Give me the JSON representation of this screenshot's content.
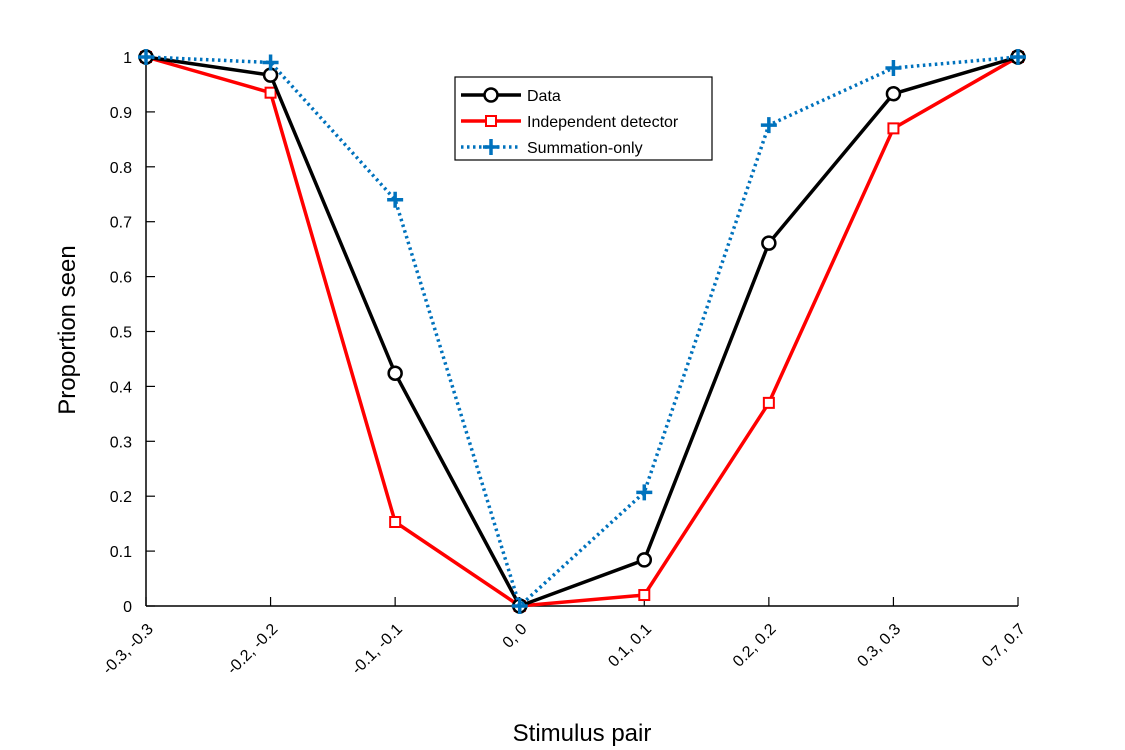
{
  "chart_data": {
    "type": "line",
    "xlabel": "Stimulus pair",
    "ylabel": "Proportion seen",
    "ylim": [
      0,
      1
    ],
    "yticks": [
      "0",
      "0.1",
      "0.2",
      "0.3",
      "0.4",
      "0.5",
      "0.6",
      "0.7",
      "0.8",
      "0.9",
      "1"
    ],
    "categories": [
      "-0.3, -0.3",
      "-0.2, -0.2",
      "-0.1, -0.1",
      "0,  0",
      "0.1,  0.1",
      "0.2,  0.2",
      "0.3,  0.3",
      "0.7,  0.7"
    ],
    "legend_position": "top-center",
    "grid": false,
    "series": [
      {
        "name": "Data",
        "color": "#000000",
        "marker": "circle",
        "line": "solid",
        "values": [
          1.0,
          0.967,
          0.424,
          0.0,
          0.084,
          0.661,
          0.933,
          1.0
        ]
      },
      {
        "name": "Independent detector",
        "color": "#ff0000",
        "marker": "square",
        "line": "solid",
        "values": [
          1.0,
          0.935,
          0.153,
          0.0,
          0.02,
          0.37,
          0.87,
          1.0
        ]
      },
      {
        "name": "Summation-only",
        "color": "#0072bd",
        "marker": "plus",
        "line": "dotted",
        "values": [
          1.0,
          0.99,
          0.74,
          0.0,
          0.207,
          0.876,
          0.98,
          1.0
        ]
      }
    ]
  }
}
